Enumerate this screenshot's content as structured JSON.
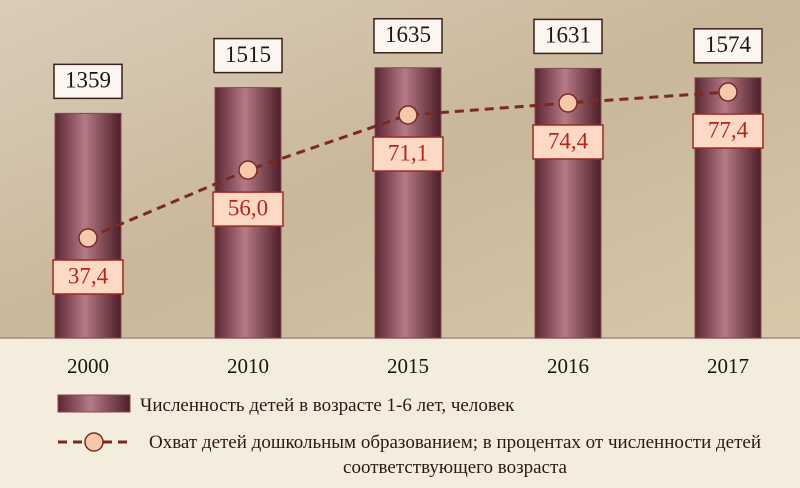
{
  "chart_data": {
    "type": "bar-line",
    "categories": [
      "2000",
      "2010",
      "2015",
      "2016",
      "2017"
    ],
    "series": [
      {
        "name": "Численность детей в возрасте 1-6 лет, человек",
        "type": "bar",
        "color": "#8a4656",
        "values": [
          1359,
          1515,
          1635,
          1631,
          1574
        ]
      },
      {
        "name": "Охват детей дошкольным образованием; в процентах от численности детей соответствующего возраста",
        "type": "line",
        "axis": "y2",
        "color": "#7a2a22",
        "values": [
          37.4,
          56.0,
          71.1,
          74.4,
          77.4
        ],
        "value_labels": [
          "37,4",
          "56,0",
          "71,1",
          "74,4",
          "77,4"
        ]
      }
    ],
    "ylim": [
      0,
      1700
    ],
    "y2lim": [
      10,
      87
    ]
  }
}
